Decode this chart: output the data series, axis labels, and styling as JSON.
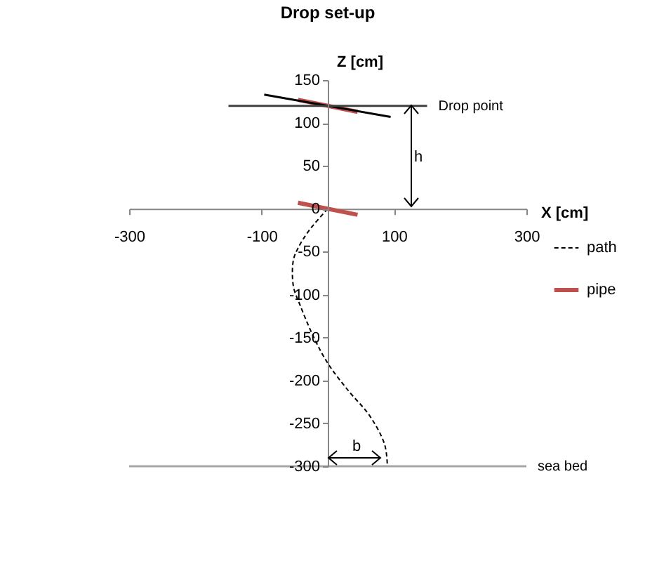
{
  "chart_data": {
    "type": "line",
    "title": "Drop set-up",
    "xlabel": "X [cm]",
    "ylabel": "Z [cm]",
    "xlim": [
      -300,
      300
    ],
    "xticks": [
      -300,
      -100,
      100,
      300
    ],
    "ylim": [
      -300,
      150
    ],
    "yticks": [
      -300,
      -250,
      -200,
      -150,
      -100,
      -50,
      0,
      50,
      100,
      150
    ],
    "grid": false,
    "legend": "right",
    "marker": "none",
    "series": [
      {
        "name": "path",
        "color": "#000000",
        "line_style": "dashed",
        "x": [
          0,
          -28,
          -45,
          -52,
          -52,
          -42,
          -21,
          0,
          29,
          64,
          86,
          90
        ],
        "values": [
          0,
          -25,
          -46,
          -60,
          -90,
          -112,
          -150,
          -180,
          -210,
          -242,
          -275,
          -300
        ]
      },
      {
        "name": "pipe",
        "color": "#c0504d",
        "x": [
          -45,
          45
        ],
        "values": [
          127,
          113
        ]
      },
      {
        "color": "#c0504d",
        "x": [
          -45,
          45
        ],
        "values": [
          7,
          -7
        ]
      },
      {
        "color": "#000000",
        "x": [
          -96,
          95
        ],
        "values": [
          133,
          107
        ]
      },
      {
        "color": "#404040",
        "x": [
          -150,
          150
        ],
        "values": [
          120,
          120
        ]
      },
      {
        "color": "#a6a6a6",
        "x": [
          -300,
          300
        ],
        "values": [
          -300,
          -300
        ]
      }
    ],
    "annotations": [
      {
        "text": "Drop point",
        "x": 150,
        "y": 120
      },
      "h",
      "b",
      {
        "text": "sea bed",
        "x": 300,
        "y": -300
      }
    ]
  }
}
